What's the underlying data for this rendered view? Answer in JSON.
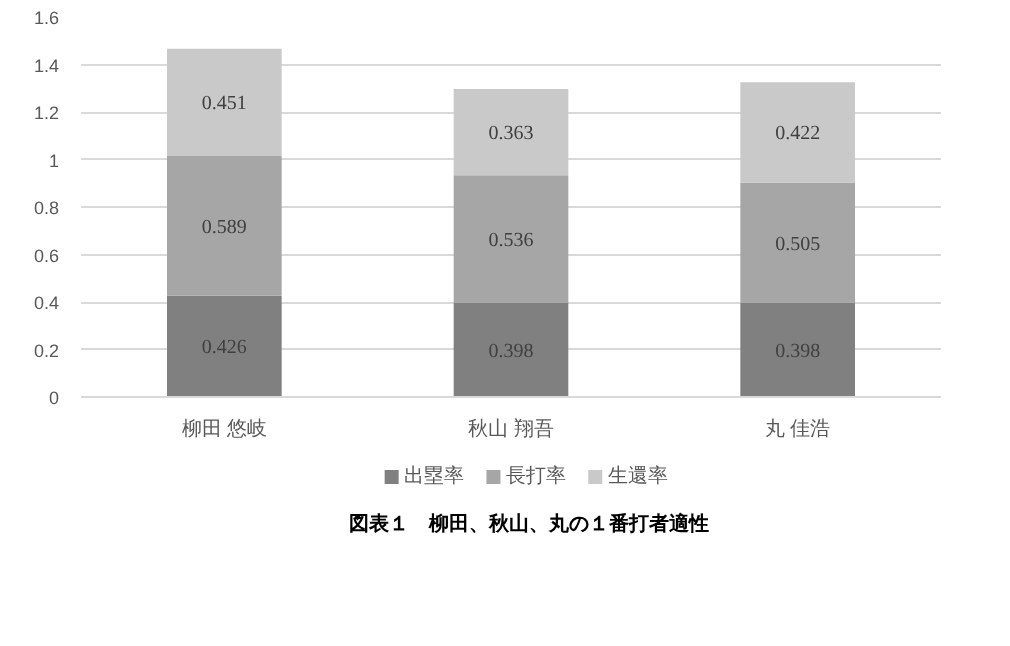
{
  "chart_data": {
    "type": "bar",
    "stacked": true,
    "title": "図表１　柳田、秋山、丸の１番打者適性",
    "categories": [
      "柳田 悠岐",
      "秋山 翔吾",
      "丸 佳浩"
    ],
    "series": [
      {
        "name": "出塁率",
        "color": "#808080",
        "values": [
          0.426,
          0.398,
          0.398
        ]
      },
      {
        "name": "長打率",
        "color": "#a6a6a6",
        "values": [
          0.589,
          0.536,
          0.505
        ]
      },
      {
        "name": "生還率",
        "color": "#c9c9c9",
        "values": [
          0.451,
          0.363,
          0.422
        ]
      }
    ],
    "ylim": [
      0,
      1.6
    ],
    "yticks": [
      0,
      0.2,
      0.4,
      0.6,
      0.8,
      1,
      1.2,
      1.4,
      1.6
    ],
    "grid": "y",
    "legend": "bottom",
    "data_labels": true
  }
}
